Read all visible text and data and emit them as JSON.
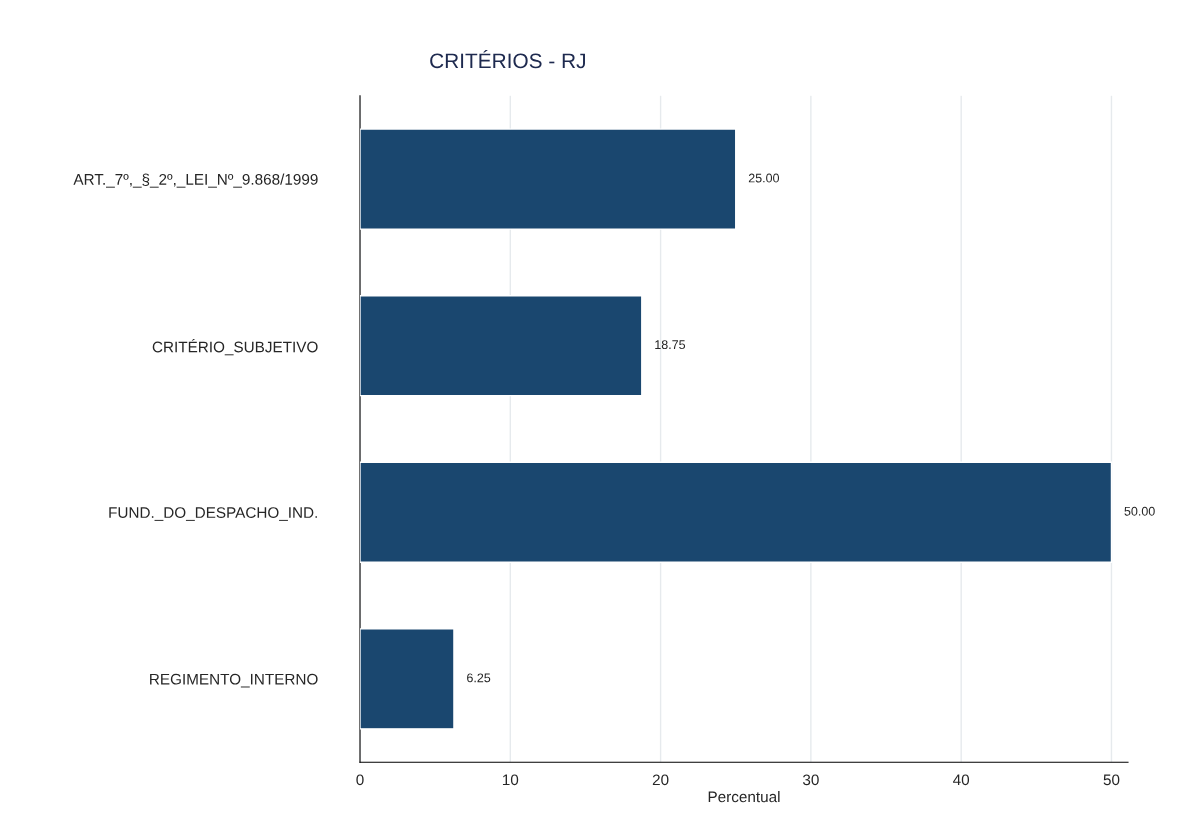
{
  "chart_data": {
    "type": "bar",
    "orientation": "horizontal",
    "title": "CRITÉRIOS - RJ",
    "xlabel": "Percentual",
    "categories": [
      "ART._7º,_§_2º,_LEI_Nº_9.868/1999",
      "CRITÉRIO_SUBJETIVO",
      "FUND._DO_DESPACHO_IND.",
      "REGIMENTO_INTERNO"
    ],
    "values": [
      25.0,
      18.75,
      50.0,
      6.25
    ],
    "color": "#1a476f",
    "value_labels": [
      "25.00",
      "18.75",
      "50.00",
      "6.25"
    ],
    "xlim": [
      0,
      51.1
    ],
    "xticks": [
      0,
      10,
      20,
      30,
      40,
      50
    ],
    "grid": "x"
  }
}
